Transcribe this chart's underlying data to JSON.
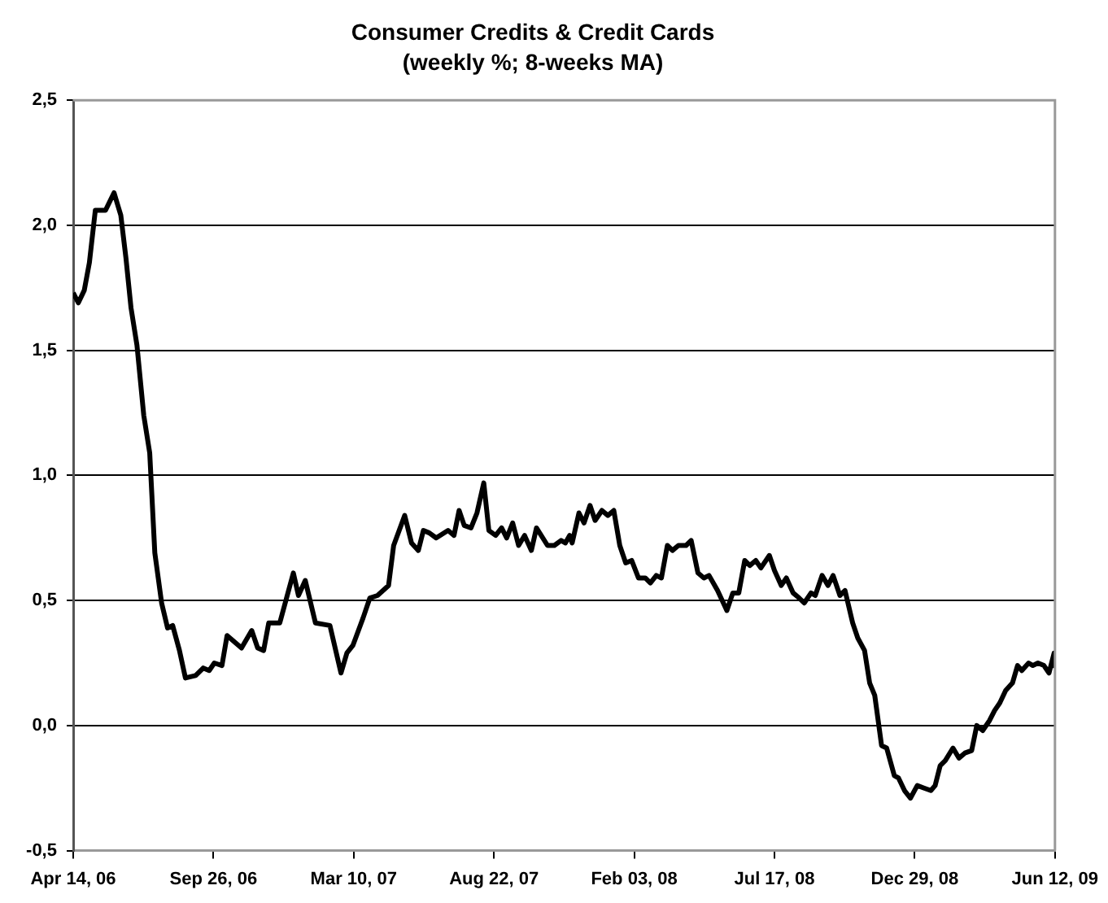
{
  "chart_data": {
    "type": "line",
    "title": "Consumer Credits & Credit Cards",
    "subtitle": "(weekly %; 8-weeks MA)",
    "x": [
      "2006-04-14",
      "2006-04-20",
      "2006-04-27",
      "2006-05-03",
      "2006-05-10",
      "2006-05-22",
      "2006-06-01",
      "2006-06-09",
      "2006-06-15",
      "2006-06-21",
      "2006-06-28",
      "2006-07-06",
      "2006-07-13",
      "2006-07-19",
      "2006-07-27",
      "2006-08-03",
      "2006-08-09",
      "2006-08-17",
      "2006-08-24",
      "2006-09-05",
      "2006-09-14",
      "2006-09-21",
      "2006-09-27",
      "2006-10-06",
      "2006-10-12",
      "2006-10-29",
      "2006-11-10",
      "2006-11-17",
      "2006-11-24",
      "2006-11-30",
      "2006-12-13",
      "2006-12-29",
      "2007-01-04",
      "2007-01-12",
      "2007-01-24",
      "2007-02-10",
      "2007-02-23",
      "2007-03-02",
      "2007-03-09",
      "2007-03-21",
      "2007-03-29",
      "2007-04-07",
      "2007-04-20",
      "2007-04-26",
      "2007-05-09",
      "2007-05-17",
      "2007-05-25",
      "2007-05-31",
      "2007-06-07",
      "2007-06-15",
      "2007-06-29",
      "2007-07-06",
      "2007-07-12",
      "2007-07-18",
      "2007-07-26",
      "2007-08-02",
      "2007-08-10",
      "2007-08-16",
      "2007-08-24",
      "2007-08-31",
      "2007-09-06",
      "2007-09-13",
      "2007-09-20",
      "2007-09-27",
      "2007-10-05",
      "2007-10-11",
      "2007-10-24",
      "2007-11-01",
      "2007-11-09",
      "2007-11-14",
      "2007-11-19",
      "2007-11-22",
      "2007-11-30",
      "2007-12-06",
      "2007-12-13",
      "2007-12-19",
      "2007-12-27",
      "2008-01-03",
      "2008-01-10",
      "2008-01-17",
      "2008-01-24",
      "2008-01-31",
      "2008-02-08",
      "2008-02-16",
      "2008-02-22",
      "2008-02-29",
      "2008-03-06",
      "2008-03-13",
      "2008-03-19",
      "2008-03-26",
      "2008-04-04",
      "2008-04-10",
      "2008-04-18",
      "2008-04-25",
      "2008-05-01",
      "2008-05-11",
      "2008-05-22",
      "2008-05-29",
      "2008-06-05",
      "2008-06-12",
      "2008-06-18",
      "2008-06-25",
      "2008-07-01",
      "2008-07-11",
      "2008-07-17",
      "2008-07-25",
      "2008-07-31",
      "2008-08-08",
      "2008-08-15",
      "2008-08-21",
      "2008-08-29",
      "2008-09-03",
      "2008-09-11",
      "2008-09-18",
      "2008-09-24",
      "2008-10-02",
      "2008-10-08",
      "2008-10-17",
      "2008-10-23",
      "2008-10-31",
      "2008-11-06",
      "2008-11-12",
      "2008-11-20",
      "2008-11-26",
      "2008-12-05",
      "2008-12-10",
      "2008-12-17",
      "2008-12-24",
      "2009-01-01",
      "2009-01-09",
      "2009-01-17",
      "2009-01-22",
      "2009-01-28",
      "2009-02-03",
      "2009-02-12",
      "2009-02-19",
      "2009-02-26",
      "2009-03-06",
      "2009-03-12",
      "2009-03-19",
      "2009-03-27",
      "2009-04-02",
      "2009-04-08",
      "2009-04-15",
      "2009-04-23",
      "2009-04-29",
      "2009-05-04",
      "2009-05-12",
      "2009-05-17",
      "2009-05-23",
      "2009-05-30",
      "2009-06-05",
      "2009-06-11",
      "2009-06-12"
    ],
    "values": [
      1.73,
      1.69,
      1.74,
      1.85,
      2.06,
      2.06,
      2.13,
      2.04,
      1.87,
      1.67,
      1.52,
      1.24,
      1.09,
      0.69,
      0.49,
      0.39,
      0.4,
      0.3,
      0.19,
      0.2,
      0.23,
      0.22,
      0.25,
      0.24,
      0.36,
      0.31,
      0.38,
      0.31,
      0.3,
      0.41,
      0.41,
      0.61,
      0.52,
      0.58,
      0.41,
      0.4,
      0.21,
      0.29,
      0.32,
      0.43,
      0.51,
      0.52,
      0.56,
      0.72,
      0.84,
      0.73,
      0.7,
      0.78,
      0.77,
      0.75,
      0.78,
      0.76,
      0.86,
      0.8,
      0.79,
      0.85,
      0.97,
      0.78,
      0.76,
      0.79,
      0.75,
      0.81,
      0.72,
      0.76,
      0.7,
      0.79,
      0.72,
      0.72,
      0.74,
      0.73,
      0.76,
      0.73,
      0.85,
      0.81,
      0.88,
      0.82,
      0.86,
      0.84,
      0.86,
      0.72,
      0.65,
      0.66,
      0.59,
      0.59,
      0.57,
      0.6,
      0.59,
      0.72,
      0.7,
      0.72,
      0.72,
      0.74,
      0.61,
      0.59,
      0.6,
      0.54,
      0.46,
      0.53,
      0.53,
      0.66,
      0.64,
      0.66,
      0.63,
      0.68,
      0.62,
      0.56,
      0.59,
      0.53,
      0.51,
      0.49,
      0.53,
      0.52,
      0.6,
      0.56,
      0.6,
      0.52,
      0.54,
      0.41,
      0.35,
      0.3,
      0.17,
      0.12,
      -0.08,
      -0.09,
      -0.2,
      -0.21,
      -0.26,
      -0.29,
      -0.24,
      -0.25,
      -0.26,
      -0.24,
      -0.16,
      -0.14,
      -0.09,
      -0.13,
      -0.11,
      -0.1,
      0.0,
      -0.02,
      0.02,
      0.06,
      0.09,
      0.14,
      0.17,
      0.24,
      0.22,
      0.25,
      0.24,
      0.25,
      0.24,
      0.21,
      0.29,
      0.23
    ],
    "color": "#000000",
    "xlim": [
      "2006-04-14",
      "2009-06-12"
    ],
    "xticks": [
      {
        "value": "2006-04-14",
        "label": "Apr 14, 06"
      },
      {
        "value": "2006-09-26",
        "label": "Sep 26, 06"
      },
      {
        "value": "2007-03-10",
        "label": "Mar 10, 07"
      },
      {
        "value": "2007-08-22",
        "label": "Aug 22, 07"
      },
      {
        "value": "2008-02-03",
        "label": "Feb 03, 08"
      },
      {
        "value": "2008-07-17",
        "label": "Jul 17, 08"
      },
      {
        "value": "2008-12-29",
        "label": "Dec 29, 08"
      },
      {
        "value": "2009-06-12",
        "label": "Jun 12, 09"
      }
    ],
    "ylim": [
      -0.5,
      2.5
    ],
    "yticks": [
      {
        "value": -0.5,
        "label": "-0,5"
      },
      {
        "value": 0,
        "label": "0,0"
      },
      {
        "value": 0.5,
        "label": "0,5"
      },
      {
        "value": 1,
        "label": "1,0"
      },
      {
        "value": 1.5,
        "label": "1,5"
      },
      {
        "value": 2,
        "label": "2,0"
      },
      {
        "value": 2.5,
        "label": "2,5"
      }
    ],
    "grid": "y",
    "legend": false,
    "marker": "none",
    "line_style": "solid"
  }
}
